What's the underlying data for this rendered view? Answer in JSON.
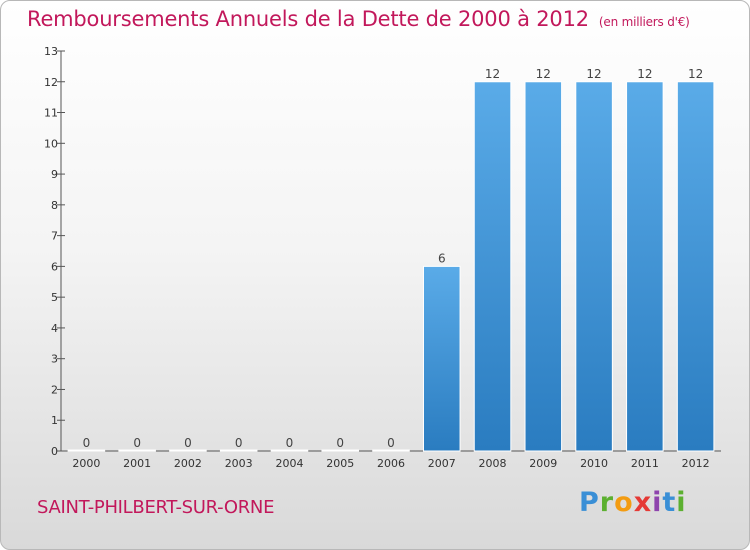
{
  "header": {
    "title": "Remboursements Annuels de la Dette de 2000 à 2012",
    "unit": "(en milliers d'€)"
  },
  "footer": {
    "commune": "SAINT-PHILBERT-SUR-ORNE",
    "logo": [
      "P",
      "r",
      "o",
      "x",
      "i",
      "t",
      "i"
    ]
  },
  "chart_data": {
    "type": "bar",
    "title": "Remboursements Annuels de la Dette de 2000 à 2012",
    "subtitle": "(en milliers d'€)",
    "xlabel": "",
    "ylabel": "",
    "categories": [
      "2000",
      "2001",
      "2002",
      "2003",
      "2004",
      "2005",
      "2006",
      "2007",
      "2008",
      "2009",
      "2010",
      "2011",
      "2012"
    ],
    "values": [
      0,
      0,
      0,
      0,
      0,
      0,
      0,
      6,
      12,
      12,
      12,
      12,
      12
    ],
    "ylim": [
      0,
      13
    ],
    "yticks": [
      0,
      1,
      2,
      3,
      4,
      5,
      6,
      7,
      8,
      9,
      10,
      11,
      12,
      13
    ],
    "grid": false,
    "legend": "none",
    "colors": {
      "bar_top": "#5aabe8",
      "bar_bottom": "#2a7cc0",
      "title": "#c2185b"
    }
  }
}
